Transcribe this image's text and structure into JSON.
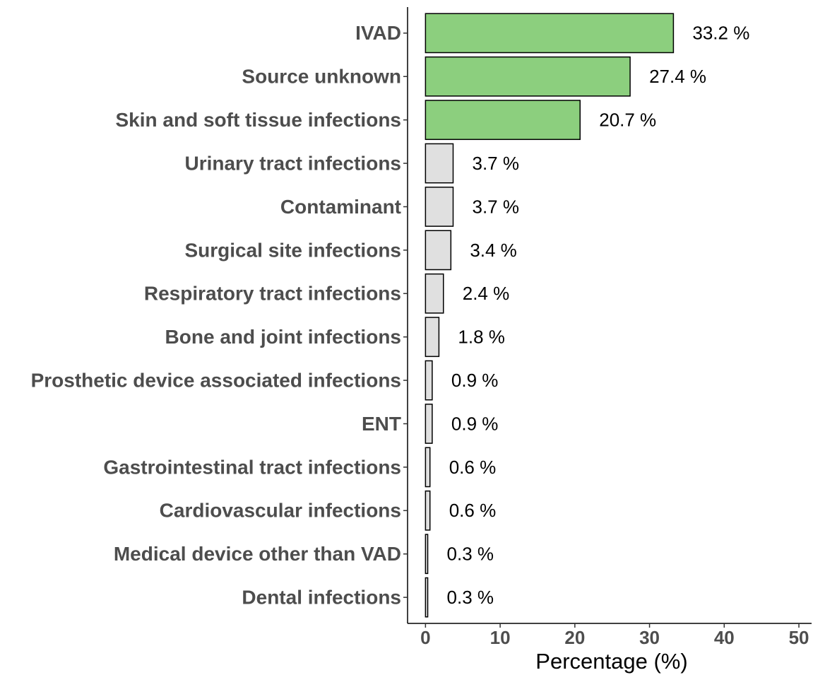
{
  "chart_data": {
    "type": "bar",
    "orientation": "horizontal",
    "x_label": "Percentage (%)",
    "categories": [
      "IVAD",
      "Source unknown",
      "Skin and soft tissue infections",
      "Urinary tract infections",
      "Contaminant",
      "Surgical site infections",
      "Respiratory tract infections",
      "Bone and joint infections",
      "Prosthetic device associated infections",
      "ENT",
      "Gastrointestinal tract infections",
      "Cardiovascular infections",
      "Medical device other than VAD",
      "Dental infections"
    ],
    "values": [
      33.2,
      27.4,
      20.7,
      3.7,
      3.7,
      3.4,
      2.4,
      1.8,
      0.9,
      0.9,
      0.6,
      0.6,
      0.3,
      0.3
    ],
    "value_labels": [
      "33.2 %",
      "27.4 %",
      "20.7 %",
      "3.7 %",
      "3.7 %",
      "3.4 %",
      "2.4 %",
      "1.8 %",
      "0.9 %",
      "0.9 %",
      "0.6 %",
      "0.6 %",
      "0.3 %",
      "0.3 %"
    ],
    "colors": [
      "#8ccf7e",
      "#8ccf7e",
      "#8ccf7e",
      "#e0e0e0",
      "#e0e0e0",
      "#e0e0e0",
      "#e0e0e0",
      "#e0e0e0",
      "#e0e0e0",
      "#e0e0e0",
      "#e0e0e0",
      "#e0e0e0",
      "#e0e0e0",
      "#e0e0e0"
    ],
    "xlim": [
      -2.4,
      51.7
    ],
    "xticks": [
      0,
      10,
      20,
      30,
      40,
      50
    ],
    "grid": false
  }
}
